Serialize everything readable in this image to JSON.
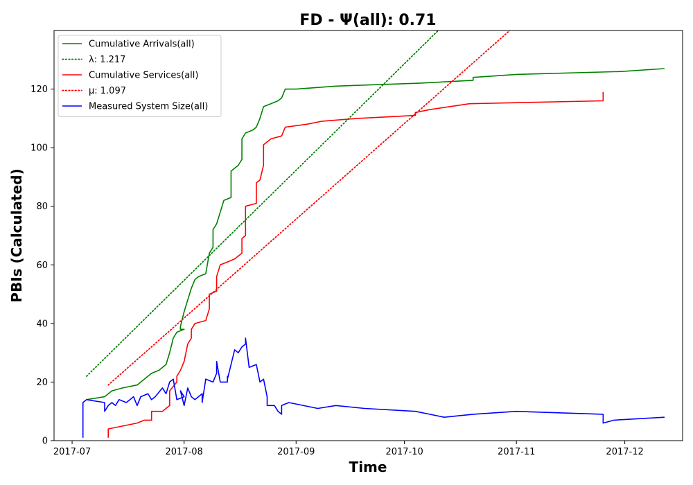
{
  "chart_data": {
    "type": "line",
    "title": "FD -  Ψ(all): 0.71",
    "xlabel": "Time",
    "ylabel": "PBIs (Calculated)",
    "xlim": [
      "2017-06-26",
      "2017-12-17"
    ],
    "ylim": [
      0,
      140
    ],
    "x_ticks": [
      "2017-07",
      "2017-08",
      "2017-09",
      "2017-10",
      "2017-11",
      "2017-12"
    ],
    "x_tick_dates": [
      "2017-07-01",
      "2017-08-01",
      "2017-09-01",
      "2017-10-01",
      "2017-11-01",
      "2017-12-01"
    ],
    "y_ticks": [
      0,
      20,
      40,
      60,
      80,
      100,
      120
    ],
    "grid": false,
    "legend_position": "upper-left",
    "series": [
      {
        "name": "Cumulative Arrivals(all)",
        "color": "#008000",
        "style": "solid",
        "points": [
          [
            "2017-07-05",
            14
          ],
          [
            "2017-07-10",
            15
          ],
          [
            "2017-07-12",
            17
          ],
          [
            "2017-07-15",
            18
          ],
          [
            "2017-07-19",
            19
          ],
          [
            "2017-07-21",
            21
          ],
          [
            "2017-07-22",
            22
          ],
          [
            "2017-07-23",
            23
          ],
          [
            "2017-07-25",
            24
          ],
          [
            "2017-07-27",
            26
          ],
          [
            "2017-07-28",
            30
          ],
          [
            "2017-07-29",
            35
          ],
          [
            "2017-07-30",
            37
          ],
          [
            "2017-08-01",
            38
          ],
          [
            "2017-07-31",
            38
          ],
          [
            "2017-07-31",
            39
          ],
          [
            "2017-08-01",
            44
          ],
          [
            "2017-08-02",
            48
          ],
          [
            "2017-08-03",
            52
          ],
          [
            "2017-08-04",
            55
          ],
          [
            "2017-08-05",
            56
          ],
          [
            "2017-08-07",
            57
          ],
          [
            "2017-08-08",
            64
          ],
          [
            "2017-08-09",
            66
          ],
          [
            "2017-08-09",
            72
          ],
          [
            "2017-08-10",
            74
          ],
          [
            "2017-08-11",
            78
          ],
          [
            "2017-08-12",
            82
          ],
          [
            "2017-08-14",
            83
          ],
          [
            "2017-08-14",
            92
          ],
          [
            "2017-08-16",
            94
          ],
          [
            "2017-08-17",
            96
          ],
          [
            "2017-08-17",
            103
          ],
          [
            "2017-08-18",
            105
          ],
          [
            "2017-08-20",
            106
          ],
          [
            "2017-08-21",
            107
          ],
          [
            "2017-08-22",
            110
          ],
          [
            "2017-08-23",
            114
          ],
          [
            "2017-08-25",
            115
          ],
          [
            "2017-08-27",
            116
          ],
          [
            "2017-08-28",
            117
          ],
          [
            "2017-08-29",
            120
          ],
          [
            "2017-09-01",
            120
          ],
          [
            "2017-09-12",
            121
          ],
          [
            "2017-10-05",
            122
          ],
          [
            "2017-10-20",
            123
          ],
          [
            "2017-10-20",
            124
          ],
          [
            "2017-11-01",
            125
          ],
          [
            "2017-11-30",
            126
          ],
          [
            "2017-12-12",
            127
          ]
        ]
      },
      {
        "name": "λ: 1.217",
        "color": "#008000",
        "style": "dotted",
        "points": [
          [
            "2017-07-05",
            22
          ],
          [
            "2017-10-12",
            142
          ]
        ]
      },
      {
        "name": "Cumulative Services(all)",
        "color": "#ff0000",
        "style": "solid",
        "points": [
          [
            "2017-07-11",
            1
          ],
          [
            "2017-07-11",
            4
          ],
          [
            "2017-07-19",
            6
          ],
          [
            "2017-07-21",
            7
          ],
          [
            "2017-07-23",
            7
          ],
          [
            "2017-07-23",
            10
          ],
          [
            "2017-07-26",
            10
          ],
          [
            "2017-07-27",
            11
          ],
          [
            "2017-07-28",
            12
          ],
          [
            "2017-07-28",
            17
          ],
          [
            "2017-07-30",
            20
          ],
          [
            "2017-07-30",
            22
          ],
          [
            "2017-07-31",
            24
          ],
          [
            "2017-08-01",
            27
          ],
          [
            "2017-08-02",
            33
          ],
          [
            "2017-08-03",
            35
          ],
          [
            "2017-08-03",
            38
          ],
          [
            "2017-08-04",
            40
          ],
          [
            "2017-08-07",
            41
          ],
          [
            "2017-08-08",
            45
          ],
          [
            "2017-08-08",
            50
          ],
          [
            "2017-08-10",
            51
          ],
          [
            "2017-08-10",
            56
          ],
          [
            "2017-08-11",
            60
          ],
          [
            "2017-08-13",
            61
          ],
          [
            "2017-08-15",
            62
          ],
          [
            "2017-08-17",
            64
          ],
          [
            "2017-08-17",
            69
          ],
          [
            "2017-08-18",
            70
          ],
          [
            "2017-08-18",
            80
          ],
          [
            "2017-08-21",
            81
          ],
          [
            "2017-08-21",
            88
          ],
          [
            "2017-08-22",
            89
          ],
          [
            "2017-08-23",
            94
          ],
          [
            "2017-08-23",
            101
          ],
          [
            "2017-08-25",
            103
          ],
          [
            "2017-08-28",
            104
          ],
          [
            "2017-08-29",
            107
          ],
          [
            "2017-09-04",
            108
          ],
          [
            "2017-09-08",
            109
          ],
          [
            "2017-09-18",
            110
          ],
          [
            "2017-10-04",
            111
          ],
          [
            "2017-10-04",
            112
          ],
          [
            "2017-10-08",
            113
          ],
          [
            "2017-10-19",
            115
          ],
          [
            "2017-11-25",
            116
          ],
          [
            "2017-11-25",
            119
          ]
        ]
      },
      {
        "name": "μ: 1.097",
        "color": "#ff0000",
        "style": "dotted",
        "points": [
          [
            "2017-07-11",
            19
          ],
          [
            "2017-11-01",
            142
          ]
        ]
      },
      {
        "name": "Measured System Size(all)",
        "color": "#0000ff",
        "style": "solid",
        "points": [
          [
            "2017-07-04",
            1
          ],
          [
            "2017-07-04",
            13
          ],
          [
            "2017-07-05",
            14
          ],
          [
            "2017-07-10",
            13
          ],
          [
            "2017-07-10",
            10
          ],
          [
            "2017-07-11",
            12
          ],
          [
            "2017-07-12",
            13
          ],
          [
            "2017-07-13",
            12
          ],
          [
            "2017-07-14",
            14
          ],
          [
            "2017-07-16",
            13
          ],
          [
            "2017-07-18",
            15
          ],
          [
            "2017-07-19",
            12
          ],
          [
            "2017-07-20",
            15
          ],
          [
            "2017-07-22",
            16
          ],
          [
            "2017-07-23",
            14
          ],
          [
            "2017-07-24",
            15
          ],
          [
            "2017-07-26",
            18
          ],
          [
            "2017-07-27",
            16
          ],
          [
            "2017-07-28",
            20
          ],
          [
            "2017-07-29",
            21
          ],
          [
            "2017-07-30",
            14
          ],
          [
            "2017-08-01",
            15
          ],
          [
            "2017-07-31",
            17
          ],
          [
            "2017-08-01",
            12
          ],
          [
            "2017-08-02",
            18
          ],
          [
            "2017-08-03",
            15
          ],
          [
            "2017-08-04",
            14
          ],
          [
            "2017-08-06",
            16
          ],
          [
            "2017-08-06",
            13
          ],
          [
            "2017-08-07",
            21
          ],
          [
            "2017-08-09",
            20
          ],
          [
            "2017-08-10",
            23
          ],
          [
            "2017-08-10",
            27
          ],
          [
            "2017-08-11",
            20
          ],
          [
            "2017-08-13",
            20
          ],
          [
            "2017-08-13",
            22
          ],
          [
            "2017-08-13",
            21
          ],
          [
            "2017-08-14",
            26
          ],
          [
            "2017-08-15",
            31
          ],
          [
            "2017-08-16",
            30
          ],
          [
            "2017-08-17",
            32
          ],
          [
            "2017-08-18",
            33
          ],
          [
            "2017-08-18",
            35
          ],
          [
            "2017-08-19",
            25
          ],
          [
            "2017-08-21",
            26
          ],
          [
            "2017-08-22",
            20
          ],
          [
            "2017-08-23",
            21
          ],
          [
            "2017-08-24",
            15
          ],
          [
            "2017-08-24",
            12
          ],
          [
            "2017-08-26",
            12
          ],
          [
            "2017-08-27",
            10
          ],
          [
            "2017-08-28",
            9
          ],
          [
            "2017-08-28",
            12
          ],
          [
            "2017-08-30",
            13
          ],
          [
            "2017-09-07",
            11
          ],
          [
            "2017-09-12",
            12
          ],
          [
            "2017-09-20",
            11
          ],
          [
            "2017-10-04",
            10
          ],
          [
            "2017-10-08",
            9
          ],
          [
            "2017-10-12",
            8
          ],
          [
            "2017-10-20",
            9
          ],
          [
            "2017-11-01",
            10
          ],
          [
            "2017-11-25",
            9
          ],
          [
            "2017-11-25",
            6
          ],
          [
            "2017-11-28",
            7
          ],
          [
            "2017-12-12",
            8
          ]
        ]
      }
    ]
  }
}
